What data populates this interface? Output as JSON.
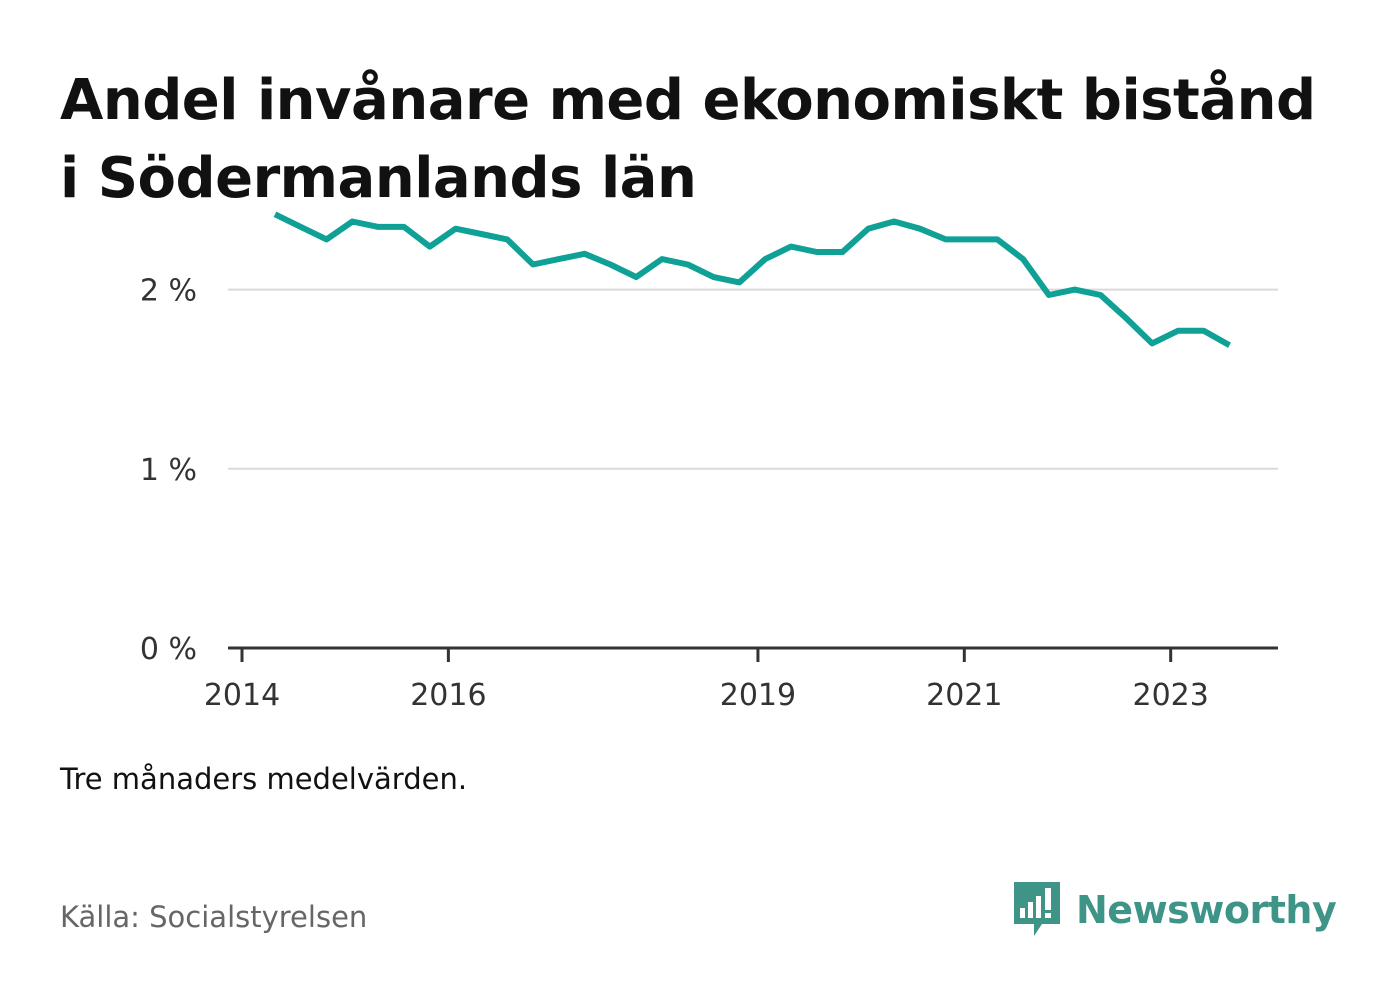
{
  "title": "Andel invånare med ekonomiskt bistånd i Södermanlands län",
  "note": "Tre månaders medelvärden.",
  "source": "Källa: Socialstyrelsen",
  "brand": {
    "name": "Newsworthy",
    "color": "#3f9488",
    "icon": "newsworthy-logo-icon"
  },
  "chart_data": {
    "type": "line",
    "title": "Andel invånare med ekonomiskt bistånd i Södermanlands län",
    "xlabel": "",
    "ylabel": "",
    "x_ticks": [
      2014,
      2016,
      2019,
      2021,
      2023
    ],
    "y_ticks": [
      {
        "value": 0,
        "label": "0 %"
      },
      {
        "value": 1,
        "label": "1 %"
      },
      {
        "value": 2,
        "label": "2 %"
      }
    ],
    "xlim": [
      2014,
      2024.04
    ],
    "ylim": [
      0,
      2.5
    ],
    "grid": true,
    "series": [
      {
        "color": "#0fa196",
        "points": [
          [
            2014.32,
            2.42
          ],
          [
            2014.57,
            2.35
          ],
          [
            2014.82,
            2.28
          ],
          [
            2015.07,
            2.38
          ],
          [
            2015.32,
            2.35
          ],
          [
            2015.57,
            2.35
          ],
          [
            2015.82,
            2.24
          ],
          [
            2016.07,
            2.34
          ],
          [
            2016.32,
            2.31
          ],
          [
            2016.57,
            2.28
          ],
          [
            2016.82,
            2.14
          ],
          [
            2017.07,
            2.17
          ],
          [
            2017.32,
            2.2
          ],
          [
            2017.57,
            2.14
          ],
          [
            2017.82,
            2.07
          ],
          [
            2018.07,
            2.17
          ],
          [
            2018.32,
            2.14
          ],
          [
            2018.57,
            2.07
          ],
          [
            2018.82,
            2.04
          ],
          [
            2019.07,
            2.17
          ],
          [
            2019.32,
            2.24
          ],
          [
            2019.57,
            2.21
          ],
          [
            2019.82,
            2.21
          ],
          [
            2020.07,
            2.34
          ],
          [
            2020.32,
            2.38
          ],
          [
            2020.57,
            2.34
          ],
          [
            2020.82,
            2.28
          ],
          [
            2021.07,
            2.28
          ],
          [
            2021.32,
            2.28
          ],
          [
            2021.57,
            2.17
          ],
          [
            2021.82,
            1.97
          ],
          [
            2022.07,
            2.0
          ],
          [
            2022.32,
            1.97
          ],
          [
            2022.57,
            1.84
          ],
          [
            2022.82,
            1.7
          ],
          [
            2023.07,
            1.77
          ],
          [
            2023.32,
            1.77
          ],
          [
            2023.57,
            1.69
          ]
        ]
      }
    ]
  }
}
